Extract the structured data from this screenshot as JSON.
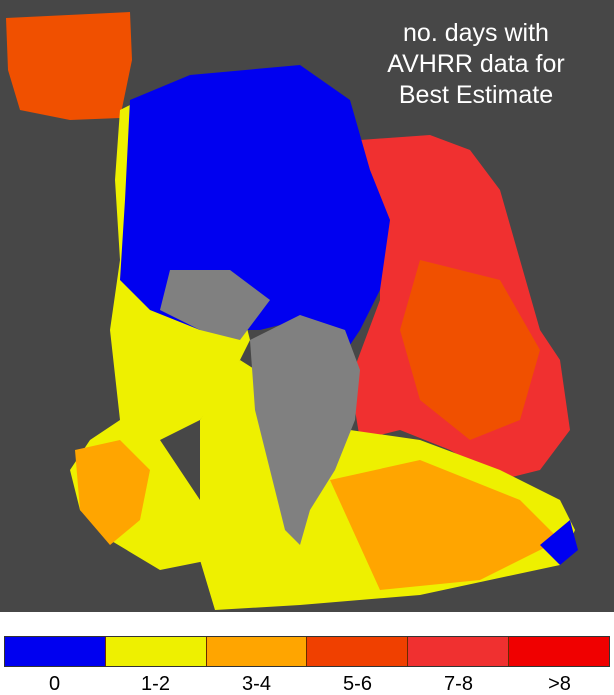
{
  "title_lines": [
    "no. days with",
    "AVHRR data for",
    "Best Estimate"
  ],
  "colors": {
    "background": "#474747",
    "land": "#808080"
  },
  "legend": [
    {
      "label": "0",
      "color": "#0000f0"
    },
    {
      "label": "1-2",
      "color": "#eef000"
    },
    {
      "label": "3-4",
      "color": "#ffa500"
    },
    {
      "label": "5-6",
      "color": "#f04000"
    },
    {
      "label": "7-8",
      "color": "#f03030"
    },
    {
      "label": ">8",
      "color": "#f00000"
    }
  ]
}
